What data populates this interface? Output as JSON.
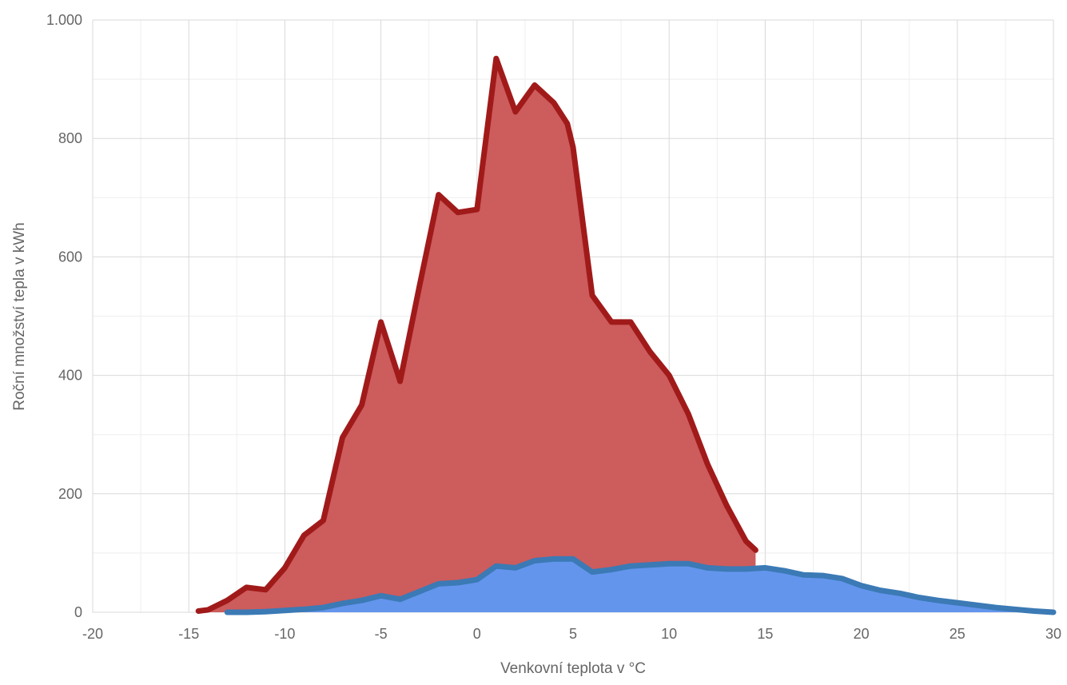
{
  "chart_data": {
    "type": "area",
    "title": "",
    "xlabel": "Venkovní teplota v °C",
    "ylabel": "Roční množství tepla v kWh",
    "xlim": [
      -20,
      30
    ],
    "ylim": [
      0,
      1000
    ],
    "x_ticks": [
      -20,
      -15,
      -10,
      -5,
      0,
      5,
      10,
      15,
      20,
      25,
      30
    ],
    "x_tick_labels": [
      "-20",
      "-15",
      "-10",
      "-5",
      "0",
      "5",
      "10",
      "15",
      "20",
      "25",
      "30"
    ],
    "y_ticks": [
      0,
      200,
      400,
      600,
      800,
      1000
    ],
    "y_tick_labels": [
      "0",
      "200",
      "400",
      "600",
      "800",
      "1.000"
    ],
    "grid": true,
    "legend": "none",
    "colors": {
      "red_fill": "#cd5c5c",
      "red_edge": "#a11a1a",
      "blue_fill": "#6495ed",
      "blue_edge": "#3b7ab5",
      "grid_major": "#d9d9d9",
      "grid_minor": "#eeeeee",
      "axis_text": "#666666"
    },
    "series": [
      {
        "x": [
          -14.5,
          -14,
          -13,
          -12,
          -11,
          -10,
          -9,
          -8,
          -7,
          -6,
          -5,
          -4,
          -3,
          -2,
          -1,
          0,
          1,
          2,
          3,
          4,
          4.7,
          5,
          6,
          7,
          8,
          9,
          10,
          11,
          12,
          13,
          14,
          14.5
        ],
        "values": [
          2,
          4,
          20,
          42,
          38,
          75,
          130,
          155,
          295,
          350,
          490,
          390,
          550,
          705,
          675,
          680,
          935,
          845,
          890,
          860,
          825,
          785,
          535,
          490,
          490,
          440,
          400,
          335,
          250,
          180,
          120,
          105
        ]
      },
      {
        "x": [
          -13,
          -12,
          -11,
          -10,
          -9,
          -8,
          -7,
          -6,
          -5,
          -4,
          -3,
          -2,
          -1,
          0,
          1,
          2,
          3,
          4,
          5,
          6,
          7,
          8,
          9,
          10,
          11,
          12,
          13,
          14,
          15,
          16,
          17,
          18,
          19,
          20,
          21,
          22,
          23,
          24,
          25,
          26,
          27,
          28,
          29,
          30
        ],
        "values": [
          0,
          0,
          1,
          3,
          5,
          8,
          15,
          20,
          28,
          22,
          35,
          48,
          50,
          55,
          78,
          75,
          87,
          90,
          90,
          68,
          72,
          78,
          80,
          82,
          82,
          75,
          73,
          73,
          75,
          70,
          63,
          62,
          57,
          45,
          37,
          32,
          25,
          20,
          16,
          12,
          8,
          5,
          2,
          0
        ]
      }
    ]
  }
}
